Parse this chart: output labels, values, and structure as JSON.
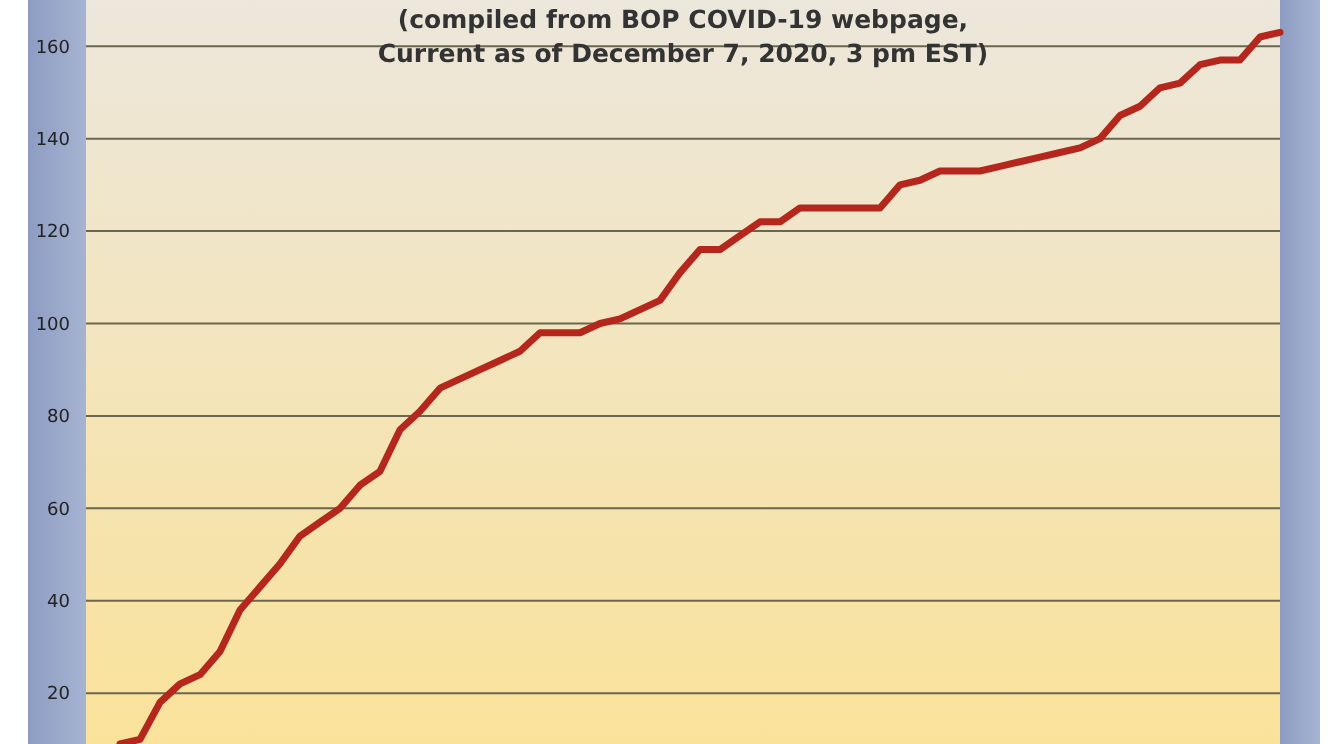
{
  "chart_data": {
    "type": "line",
    "subtitle": "(compiled from BOP COVID-19 webpage,\nCurrent as of December 7, 2020, 3 pm EST)",
    "categories": [
      null,
      null,
      null,
      null,
      null,
      null,
      null,
      null,
      null,
      null,
      null,
      null,
      null,
      null,
      null,
      null,
      null,
      null,
      null,
      null,
      null,
      null,
      null,
      null,
      null,
      null,
      null,
      null,
      null,
      null,
      null,
      null,
      null,
      null,
      null,
      null,
      null,
      null,
      null,
      null,
      null,
      null,
      null,
      null,
      null,
      null,
      null,
      null,
      null,
      null,
      null,
      null,
      null,
      null,
      null,
      null,
      null,
      null,
      null
    ],
    "series": [
      {
        "color": "#b5261c",
        "values": [
          9,
          10,
          18,
          22,
          24,
          29,
          38,
          43,
          48,
          54,
          57,
          60,
          65,
          68,
          77,
          81,
          86,
          88,
          90,
          92,
          94,
          98,
          98,
          98,
          100,
          101,
          103,
          105,
          111,
          116,
          116,
          119,
          122,
          122,
          125,
          125,
          125,
          125,
          125,
          130,
          131,
          133,
          133,
          133,
          134,
          135,
          136,
          137,
          138,
          140,
          145,
          147,
          151,
          152,
          156,
          157,
          157,
          162,
          163
        ]
      }
    ],
    "ylim": [
      9,
      170
    ],
    "yticks": [
      20,
      40,
      60,
      80,
      100,
      120,
      140,
      160
    ],
    "grid": "y",
    "marker": "none",
    "line_style": "solid"
  }
}
